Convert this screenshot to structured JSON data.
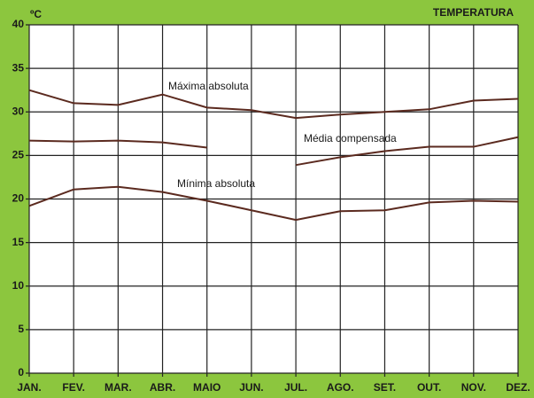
{
  "chart_data": {
    "type": "line",
    "title": "TEMPERATURA",
    "y_label": "ºC",
    "categories": [
      "JAN.",
      "FEV.",
      "MAR.",
      "ABR.",
      "MAIO",
      "JUN.",
      "JUL.",
      "AGO.",
      "SET.",
      "OUT.",
      "NOV.",
      "DEZ."
    ],
    "series": [
      {
        "name": "Máxima absoluta",
        "color": "#5b2a1f",
        "values": [
          32.5,
          31,
          30.8,
          32,
          30.5,
          30.2,
          29.3,
          29.7,
          30,
          30.3,
          31.3,
          31.5
        ]
      },
      {
        "name": "Média compensada",
        "color": "#5b2a1f",
        "values": [
          26.7,
          26.6,
          26.7,
          26.5,
          25.9,
          null,
          23.9,
          24.8,
          25.5,
          26,
          26,
          27.1
        ]
      },
      {
        "name": "Mínima absoluta",
        "color": "#5b2a1f",
        "values": [
          19.2,
          21.1,
          21.4,
          20.8,
          19.8,
          18.7,
          17.6,
          18.6,
          18.7,
          19.6,
          19.8,
          19.7
        ]
      }
    ],
    "ylim": [
      0,
      40
    ],
    "yticks": [
      0,
      5,
      10,
      15,
      20,
      25,
      30,
      35,
      40
    ],
    "grid": true
  }
}
